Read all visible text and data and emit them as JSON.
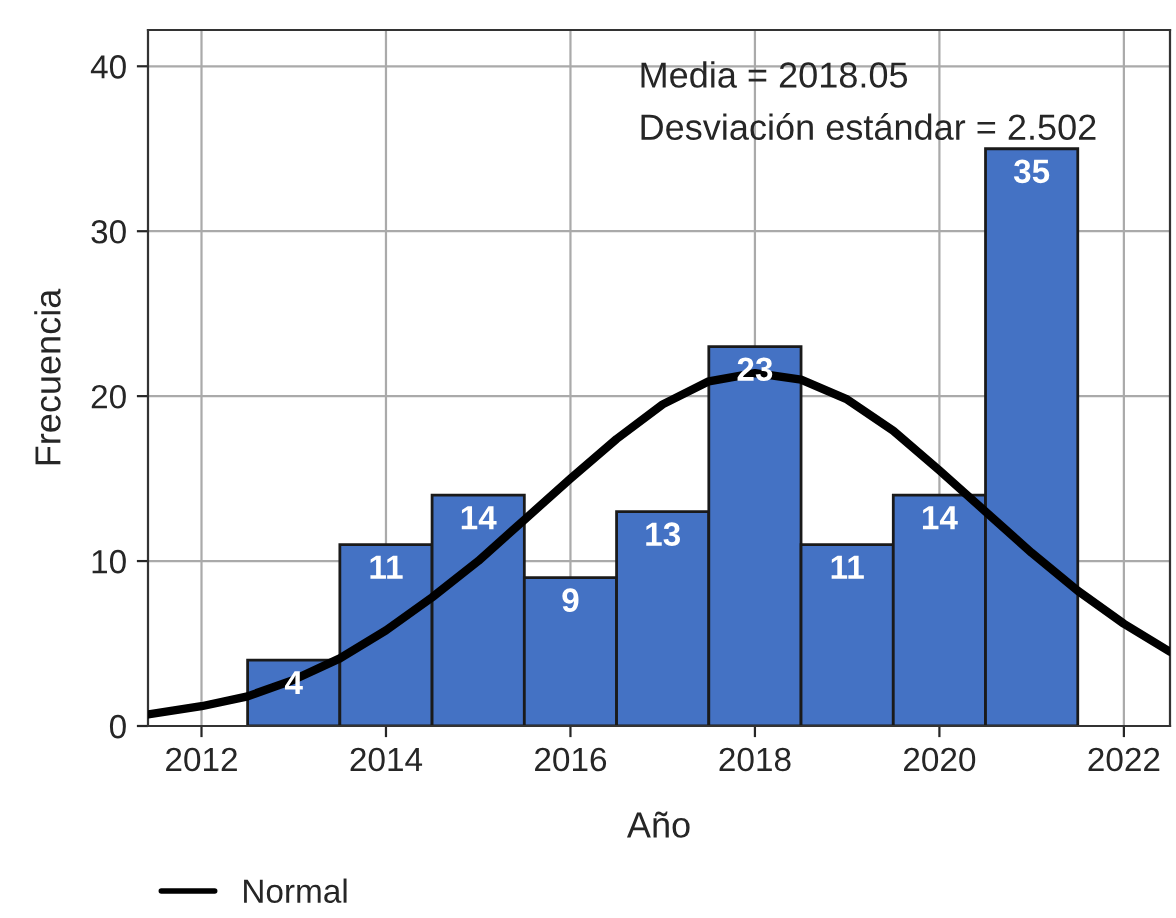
{
  "chart_data": {
    "type": "histogram",
    "xlabel": "Año",
    "ylabel": "Frecuencia",
    "annotations": [
      "Media = 2018.05",
      "Desviación estándar = 2.502"
    ],
    "bins": [
      2012.5,
      2013.5,
      2014.5,
      2015.5,
      2016.5,
      2017.5,
      2018.5,
      2019.5,
      2020.5,
      2021.5
    ],
    "series": [
      {
        "color": "#4472c4",
        "values": [
          4,
          11,
          14,
          9,
          13,
          23,
          11,
          14,
          35
        ],
        "value_labels": [
          "4",
          "11",
          "14",
          "9",
          "13",
          "23",
          "11",
          "14",
          "35"
        ]
      },
      {
        "type": "line",
        "name": "Normal",
        "color": "#000000",
        "x": [
          2011.42,
          2012,
          2012.5,
          2013,
          2013.5,
          2014,
          2014.5,
          2015,
          2015.5,
          2016,
          2016.5,
          2017,
          2017.5,
          2018,
          2018.5,
          2019,
          2019.5,
          2020,
          2020.5,
          2021,
          2021.5,
          2022,
          2022.5
        ],
        "values": [
          0.7,
          1.2,
          1.8,
          2.8,
          4.1,
          5.8,
          7.8,
          10.0,
          12.5,
          15.0,
          17.4,
          19.5,
          20.9,
          21.4,
          21.0,
          19.8,
          17.9,
          15.5,
          13.0,
          10.5,
          8.2,
          6.2,
          4.5
        ]
      }
    ],
    "xlim": [
      2011.42,
      2022.5
    ],
    "xticks": [
      2012,
      2014,
      2016,
      2018,
      2020,
      2022
    ],
    "ylim": [
      0,
      42.2
    ],
    "yticks": [
      0,
      10,
      20,
      30,
      40
    ],
    "grid": true,
    "legend": "bottom left",
    "marker": "none",
    "line_style": "solid"
  }
}
